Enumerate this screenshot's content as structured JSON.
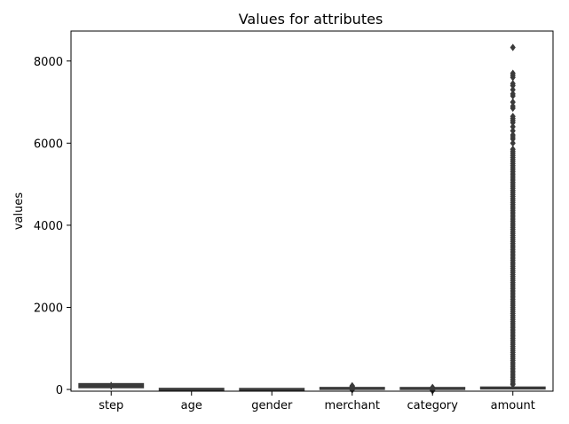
{
  "chart_data": {
    "type": "box",
    "title": "Values for attributes",
    "xlabel": "",
    "ylabel": "values",
    "ylim": [
      -42,
      8730
    ],
    "yticks": [
      0,
      2000,
      4000,
      6000,
      8000
    ],
    "ytick_labels": [
      "0",
      "2000",
      "4000",
      "6000",
      "8000"
    ],
    "categories": [
      "step",
      "age",
      "gender",
      "merchant",
      "category",
      "amount"
    ],
    "grid": false,
    "legend": "none",
    "colors": {
      "box": "#3a3a3a",
      "axis": "#000000",
      "background": "#ffffff"
    },
    "boxes": [
      {
        "category": "step",
        "whisker_low": 0,
        "q1": 45,
        "median": 90,
        "q3": 140,
        "whisker_high": 180,
        "outliers": []
      },
      {
        "category": "age",
        "whisker_low": 0,
        "q1": 2,
        "median": 3,
        "q3": 4,
        "whisker_high": 6,
        "outliers": []
      },
      {
        "category": "gender",
        "whisker_low": 0,
        "q1": 0,
        "median": 1,
        "q3": 1,
        "whisker_high": 3,
        "outliers": []
      },
      {
        "category": "merchant",
        "whisker_low": 0,
        "q1": 15,
        "median": 30,
        "q3": 35,
        "whisker_high": 45,
        "outliers": [
          -10,
          50,
          60,
          70,
          80,
          90
        ]
      },
      {
        "category": "category",
        "whisker_low": 0,
        "q1": 20,
        "median": 24,
        "q3": 28,
        "whisker_high": 35,
        "outliers": [
          -30,
          -20,
          -10,
          40,
          50
        ]
      },
      {
        "category": "amount",
        "whisker_low": 0,
        "q1": 15,
        "median": 30,
        "q3": 55,
        "whisker_high": 110,
        "outliers": [
          120,
          150,
          200,
          250,
          300,
          350,
          400,
          450,
          500,
          550,
          600,
          650,
          700,
          750,
          800,
          850,
          900,
          950,
          1000,
          1050,
          1100,
          1150,
          1200,
          1250,
          1300,
          1350,
          1400,
          1450,
          1500,
          1550,
          1600,
          1650,
          1700,
          1750,
          1800,
          1850,
          1900,
          1950,
          2000,
          2050,
          2100,
          2150,
          2200,
          2250,
          2300,
          2350,
          2400,
          2450,
          2500,
          2550,
          2600,
          2650,
          2700,
          2750,
          2800,
          2850,
          2900,
          2950,
          3000,
          3050,
          3100,
          3150,
          3200,
          3250,
          3300,
          3350,
          3400,
          3450,
          3500,
          3550,
          3600,
          3650,
          3700,
          3750,
          3800,
          3850,
          3900,
          3950,
          4000,
          4050,
          4100,
          4150,
          4200,
          4250,
          4300,
          4350,
          4400,
          4450,
          4500,
          4550,
          4600,
          4650,
          4700,
          4750,
          4800,
          4850,
          4900,
          4950,
          5000,
          5050,
          5100,
          5150,
          5200,
          5250,
          5300,
          5350,
          5400,
          5450,
          5500,
          5550,
          5600,
          5650,
          5700,
          5750,
          5800,
          5850,
          6000,
          6100,
          6150,
          6200,
          6300,
          6400,
          6500,
          6550,
          6600,
          6650,
          6850,
          6900,
          7000,
          7150,
          7200,
          7300,
          7400,
          7450,
          7600,
          7650,
          7700,
          8330
        ]
      }
    ]
  }
}
